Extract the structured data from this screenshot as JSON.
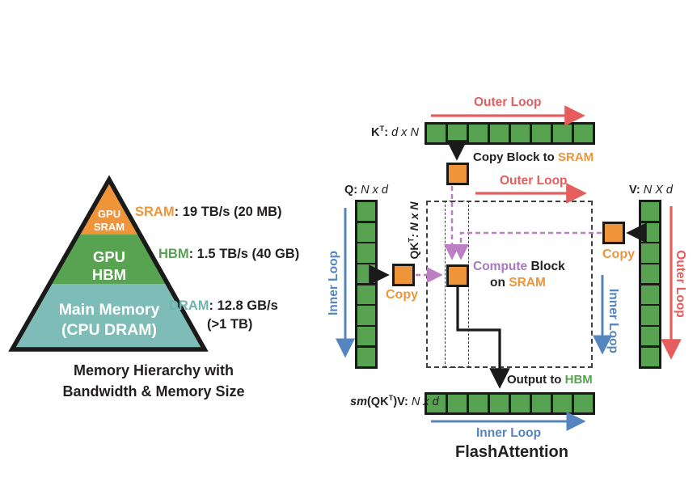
{
  "colors": {
    "green": "#58A351",
    "orange": "#F0943A",
    "teal": "#7EBDB7",
    "red": "#E55D5D",
    "blue": "#5585BE",
    "purple_arrow": "#BC7FC4",
    "purple_text": "#A878BE",
    "ink": "#1A1A1A"
  },
  "pyramid": {
    "levels": [
      {
        "lines": [
          "GPU",
          "SRAM"
        ]
      },
      {
        "lines": [
          "GPU",
          "HBM"
        ]
      },
      {
        "lines": [
          "Main Memory",
          "(CPU DRAM)"
        ]
      }
    ],
    "specs": [
      {
        "name": "SRAM",
        "sep": ": ",
        "value": "19 TB/s (20 MB)"
      },
      {
        "name": "HBM",
        "sep": ": ",
        "value": "1.5 TB/s (40 GB)"
      },
      {
        "name": "DRAM",
        "sep": ": ",
        "value": "12.8 GB/s",
        "value_line2": "(>1 TB)"
      }
    ],
    "caption": [
      "Memory Hierarchy with",
      "Bandwidth & Memory Size"
    ]
  },
  "flash": {
    "title": "FlashAttention",
    "kt": {
      "sym": "K",
      "sup": "T",
      "colon": ": ",
      "dims": "d x N",
      "cells": 8
    },
    "q": {
      "sym": "Q",
      "colon": ": ",
      "dims": "N x d",
      "cells": 8
    },
    "v": {
      "sym": "V",
      "colon": ": ",
      "dims": "N X d",
      "cells": 8
    },
    "out": {
      "sym1": "sm",
      "sym2": "(QK",
      "sup": "T",
      "sym3": ")V:",
      "dims": " N x d",
      "cells": 8
    },
    "qkt": {
      "sym": "QK",
      "sup": "T",
      "rest": ": N x N"
    },
    "loops": {
      "outer_top": "Outer Loop",
      "outer_mid": "Outer Loop",
      "outer_right": "Outer Loop",
      "inner_left": "Inner Loop",
      "inner_right": "Inner Loop",
      "inner_bottom": "Inner Loop"
    },
    "copy_block": {
      "prefix": "Copy Block to ",
      "sram": "SRAM"
    },
    "copy_q": "Copy",
    "copy_v": "Copy",
    "compute": {
      "word1": "Compute",
      "word2": " Block",
      "line2_prefix": "on ",
      "line2_sram": "SRAM"
    },
    "output": {
      "prefix": "Output to ",
      "hbm": "HBM"
    }
  }
}
